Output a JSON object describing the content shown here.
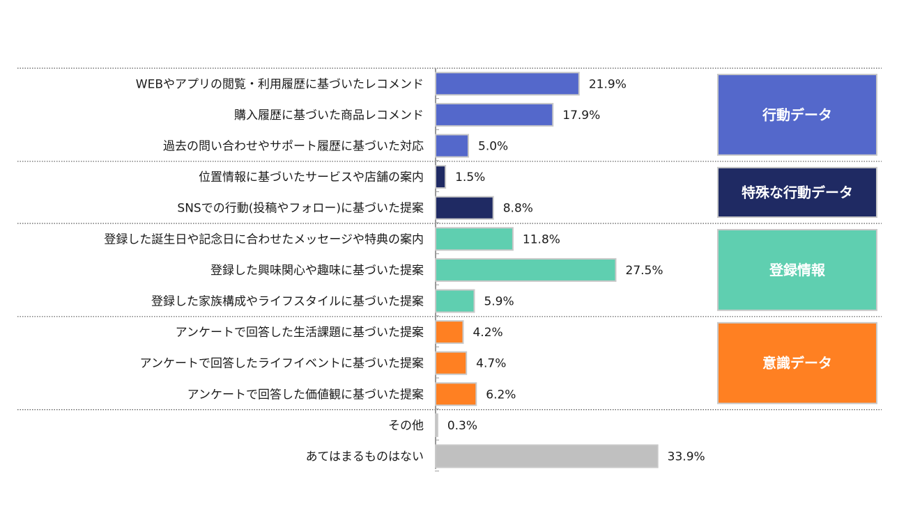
{
  "chart_data": {
    "type": "bar",
    "orientation": "horizontal",
    "unit": "%",
    "categories": [
      "WEBやアプリの閲覧・利用履歴に基づいたレコメンド",
      "購入履歴に基づいた商品レコメンド",
      "過去の問い合わせやサポート履歴に基づいた対応",
      "位置情報に基づいたサービスや店舗の案内",
      "SNSでの行動(投稿やフォロー)に基づいた提案",
      "登録した誕生日や記念日に合わせたメッセージや特典の案内",
      "登録した興味関心や趣味に基づいた提案",
      "登録した家族構成やライフスタイルに基づいた提案",
      "アンケートで回答した生活課題に基づいた提案",
      "アンケートで回答したライフイベントに基づいた提案",
      "アンケートで回答した価値観に基づいた提案",
      "その他",
      "あてはまるものはない"
    ],
    "values": [
      21.9,
      17.9,
      5.0,
      1.5,
      8.8,
      11.8,
      27.5,
      5.9,
      4.2,
      4.7,
      6.2,
      0.3,
      33.9
    ],
    "value_labels": [
      "21.9%",
      "17.9%",
      "5.0%",
      "1.5%",
      "8.8%",
      "11.8%",
      "27.5%",
      "5.9%",
      "4.2%",
      "4.7%",
      "6.2%",
      "0.3%",
      "33.9%"
    ],
    "xlim": [
      0,
      100
    ],
    "groups": [
      {
        "label": "行動データ",
        "start": 0,
        "end": 2,
        "color": "#5468CB"
      },
      {
        "label": "特殊な行動データ",
        "start": 3,
        "end": 4,
        "color": "#1F2A63"
      },
      {
        "label": "登録情報",
        "start": 5,
        "end": 7,
        "color": "#5FCFB0"
      },
      {
        "label": "意識データ",
        "start": 8,
        "end": 10,
        "color": "#FF8022"
      }
    ],
    "other_color": "#C0C0C0",
    "bar_border_color": "#C8C8C8"
  }
}
